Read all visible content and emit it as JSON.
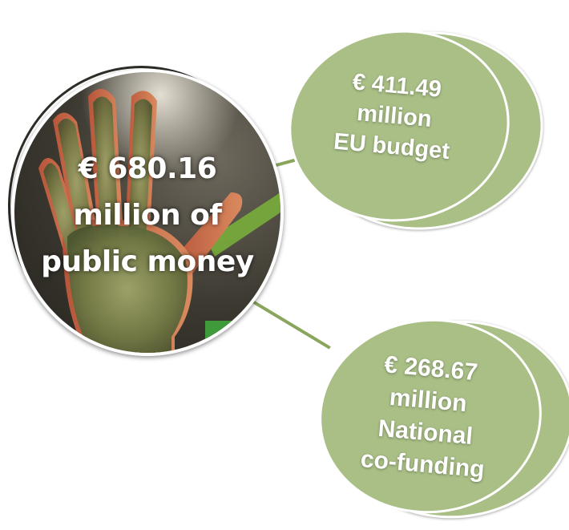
{
  "center": {
    "line1": "€ 680.16",
    "line2": "million of",
    "line3": "public money"
  },
  "eu_budget": {
    "line1": "€ 411.49",
    "line2": "million",
    "line3": "EU budget"
  },
  "national": {
    "line1": "€ 268.67",
    "line2": "million",
    "line3": "National",
    "line4": "co-funding"
  },
  "colors": {
    "badge_fill": "#a9bf86",
    "connector": "#8aa55c",
    "text": "#ffffff"
  },
  "icons": {
    "center_image": "moss-covered-hand-photo"
  }
}
